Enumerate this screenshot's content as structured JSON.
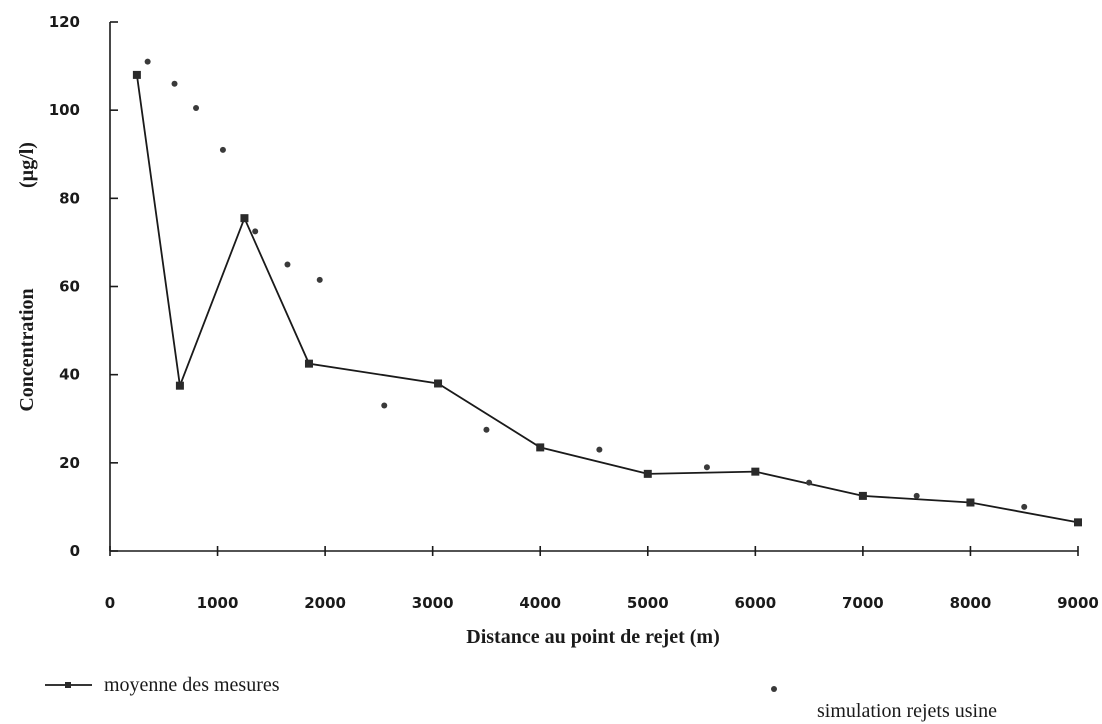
{
  "chart_data": {
    "type": "line",
    "xlabel": "Distance au point de rejet (m)",
    "ylabel": "Concentration",
    "ylabel_unit": "(µg/l)",
    "xlim": [
      0,
      9000
    ],
    "ylim": [
      0,
      120
    ],
    "x_ticks": [
      0,
      1000,
      2000,
      3000,
      4000,
      5000,
      6000,
      7000,
      8000,
      9000
    ],
    "x_tick_labels": [
      "0",
      "1000",
      "2000",
      "3000",
      "4000",
      "5000",
      "6000",
      "7000",
      "8000",
      "9000"
    ],
    "y_ticks": [
      0,
      20,
      40,
      60,
      80,
      100,
      120
    ],
    "y_tick_labels": [
      "0",
      "20",
      "40",
      "60",
      "80",
      "100",
      "120"
    ],
    "grid": false,
    "legend_position": "bottom",
    "series": [
      {
        "name": "moyenne des mesures",
        "style": "line-square",
        "color": "#1a1a1a",
        "points": [
          [
            250,
            108
          ],
          [
            650,
            37.5
          ],
          [
            1250,
            75.5
          ],
          [
            1850,
            42.5
          ],
          [
            3050,
            38
          ],
          [
            4000,
            23.5
          ],
          [
            5000,
            17.5
          ],
          [
            6000,
            18
          ],
          [
            7000,
            12.5
          ],
          [
            8000,
            11
          ],
          [
            9000,
            6.5
          ]
        ]
      },
      {
        "name": "simulation rejets usine",
        "style": "dot",
        "color": "#3a3a3a",
        "points": [
          [
            350,
            111
          ],
          [
            600,
            106
          ],
          [
            800,
            100.5
          ],
          [
            1050,
            91
          ],
          [
            1350,
            72.5
          ],
          [
            1650,
            65
          ],
          [
            1950,
            61.5
          ],
          [
            2550,
            33
          ],
          [
            3500,
            27.5
          ],
          [
            4550,
            23
          ],
          [
            5550,
            19
          ],
          [
            6500,
            15.5
          ],
          [
            7500,
            12.5
          ],
          [
            8500,
            10
          ]
        ]
      }
    ]
  }
}
